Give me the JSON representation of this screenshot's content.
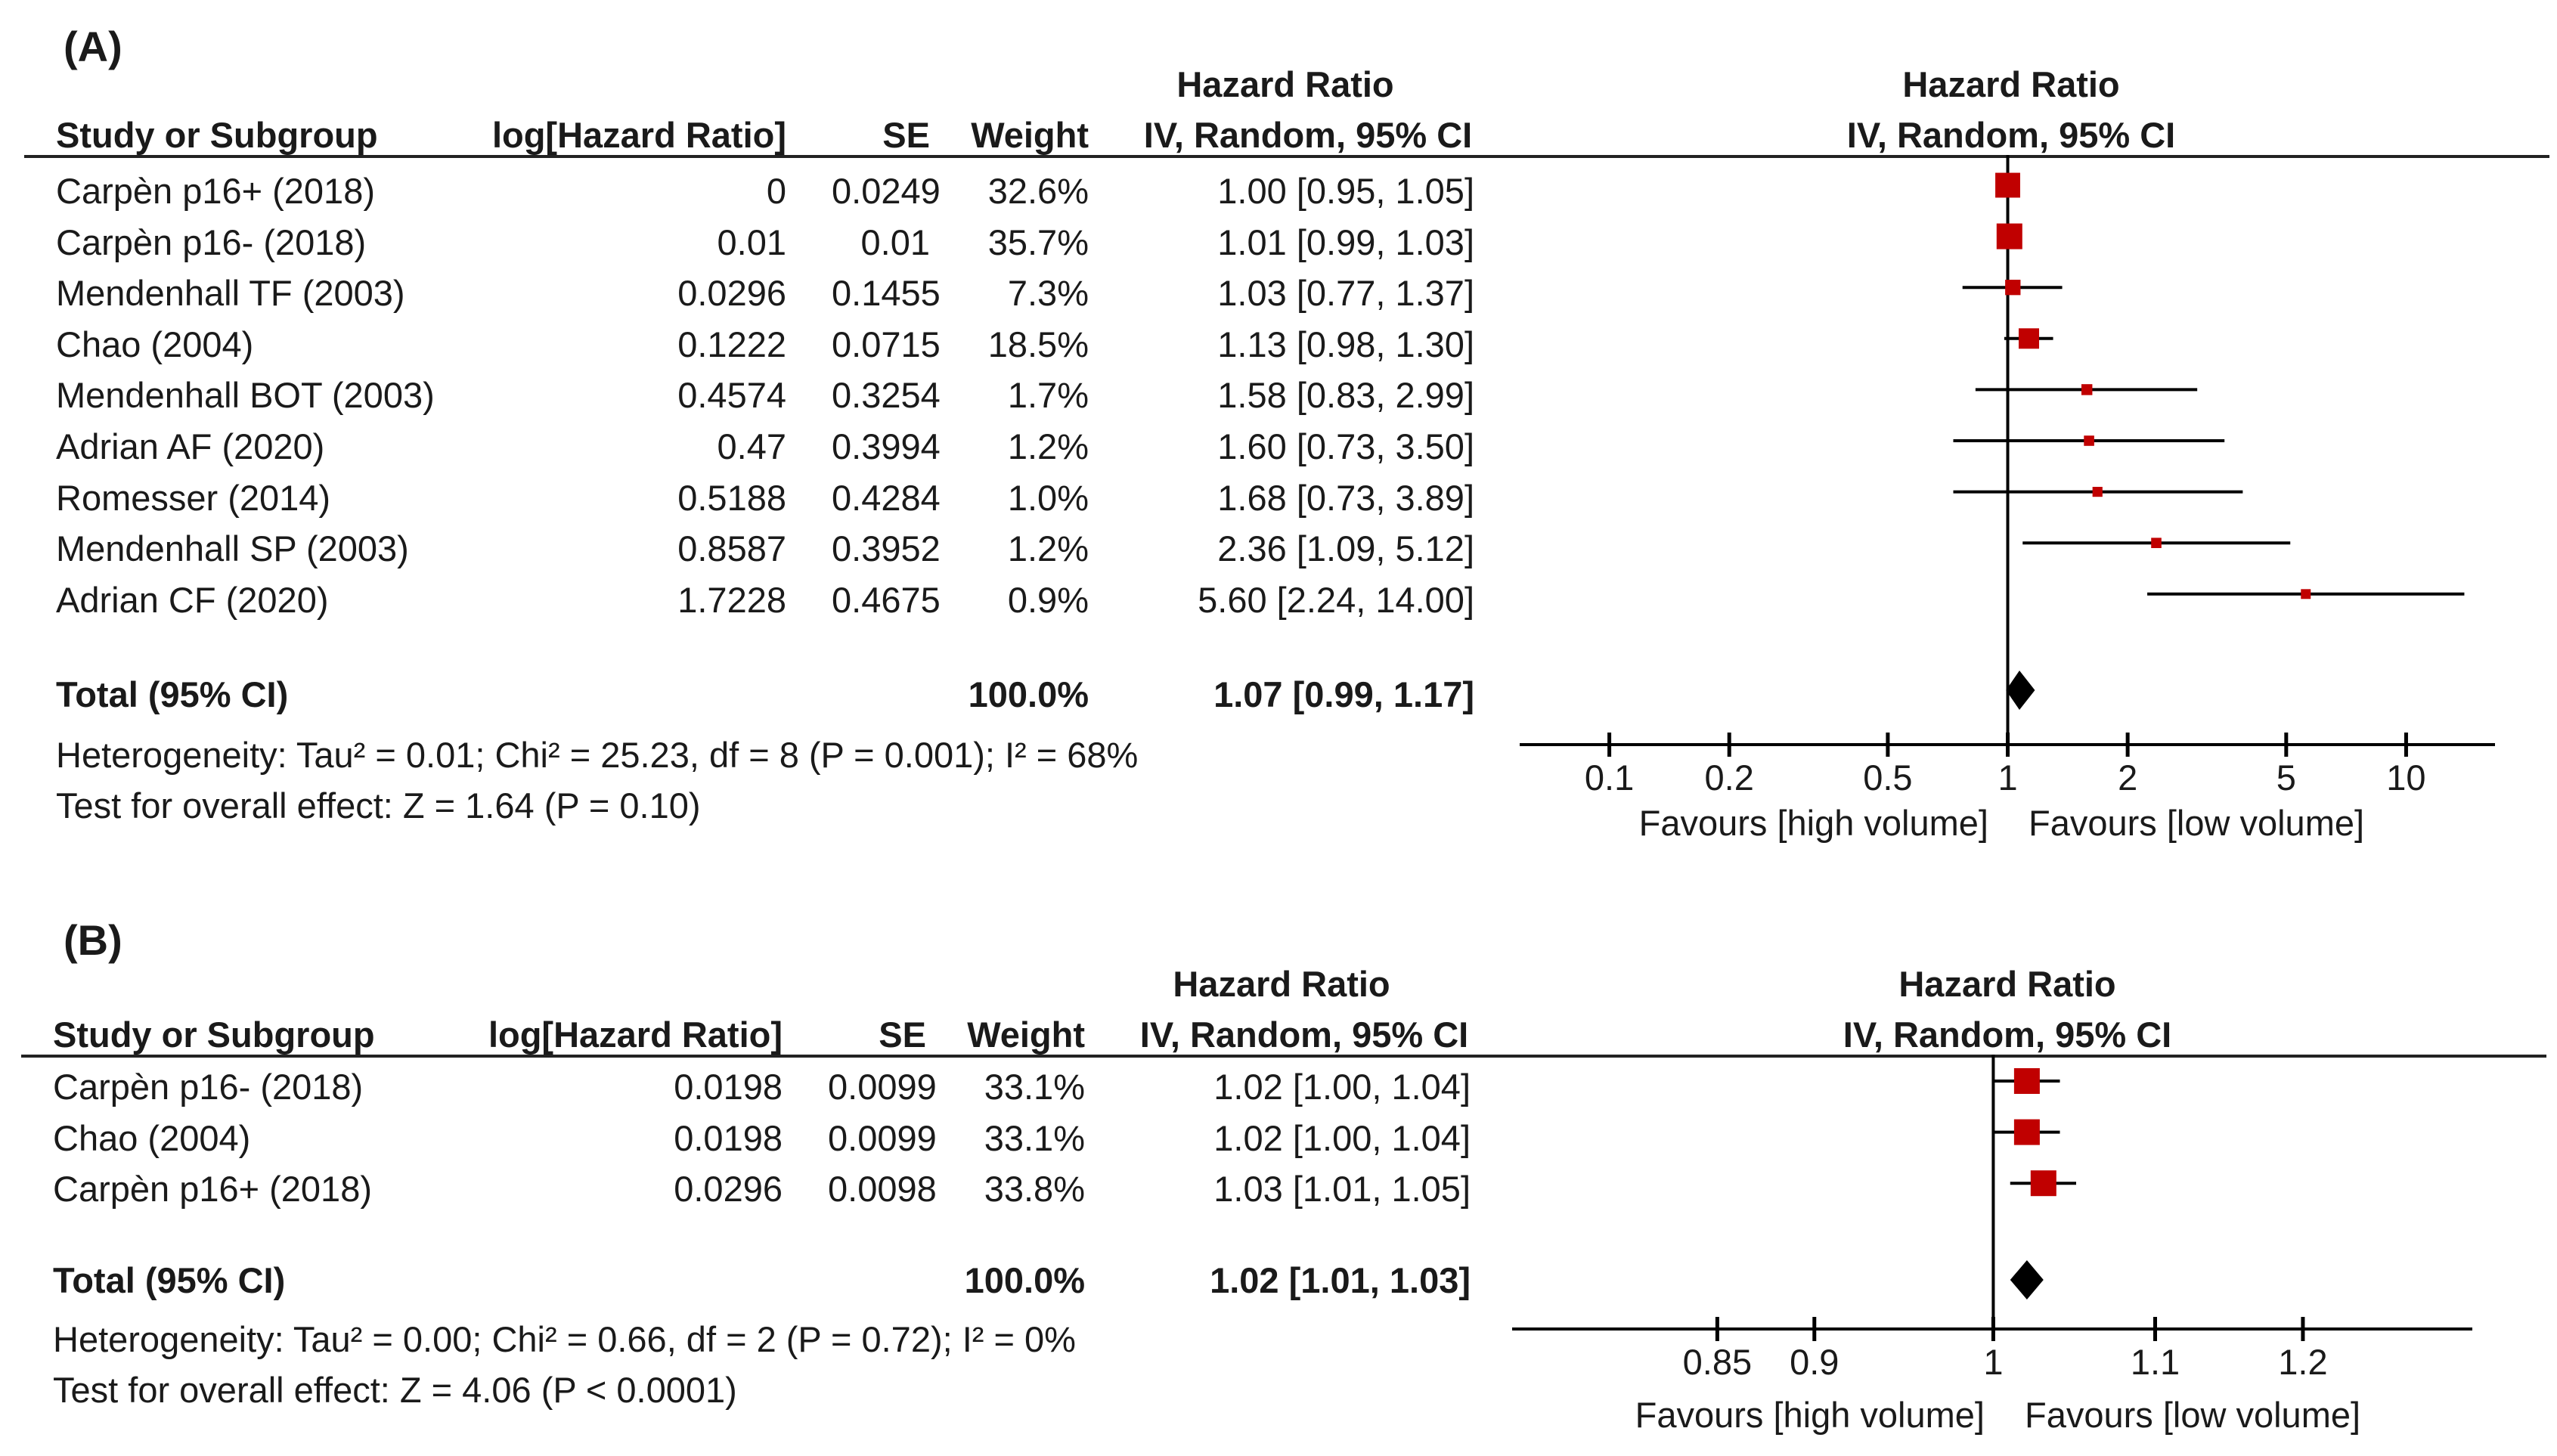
{
  "chart_data": [
    {
      "type": "forest",
      "panel_label": "(A)",
      "headers": {
        "study": "Study or Subgroup",
        "log_hr": "log[Hazard Ratio]",
        "se": "SE",
        "weight": "Weight",
        "hr_title": "Hazard Ratio",
        "hr_method": "IV, Random, 95% CI",
        "plot_title": "Hazard Ratio",
        "plot_method": "IV, Random, 95% CI"
      },
      "studies": [
        {
          "name": "Carpèn p16+ (2018)",
          "log_hr": "0",
          "se": "0.0249",
          "weight": "32.6%",
          "ci_text": "1.00 [0.95, 1.05]",
          "hr": 1.0,
          "lo": 0.95,
          "hi": 1.05,
          "w": 32.6
        },
        {
          "name": "Carpèn p16- (2018)",
          "log_hr": "0.01",
          "se": "0.01",
          "weight": "35.7%",
          "ci_text": "1.01 [0.99, 1.03]",
          "hr": 1.01,
          "lo": 0.99,
          "hi": 1.03,
          "w": 35.7
        },
        {
          "name": "Mendenhall TF (2003)",
          "log_hr": "0.0296",
          "se": "0.1455",
          "weight": "7.3%",
          "ci_text": "1.03 [0.77, 1.37]",
          "hr": 1.03,
          "lo": 0.77,
          "hi": 1.37,
          "w": 7.3
        },
        {
          "name": "Chao (2004)",
          "log_hr": "0.1222",
          "se": "0.0715",
          "weight": "18.5%",
          "ci_text": "1.13 [0.98, 1.30]",
          "hr": 1.13,
          "lo": 0.98,
          "hi": 1.3,
          "w": 18.5
        },
        {
          "name": "Mendenhall BOT (2003)",
          "log_hr": "0.4574",
          "se": "0.3254",
          "weight": "1.7%",
          "ci_text": "1.58 [0.83, 2.99]",
          "hr": 1.58,
          "lo": 0.83,
          "hi": 2.99,
          "w": 1.7
        },
        {
          "name": "Adrian AF (2020)",
          "log_hr": "0.47",
          "se": "0.3994",
          "weight": "1.2%",
          "ci_text": "1.60 [0.73, 3.50]",
          "hr": 1.6,
          "lo": 0.73,
          "hi": 3.5,
          "w": 1.2
        },
        {
          "name": "Romesser (2014)",
          "log_hr": "0.5188",
          "se": "0.4284",
          "weight": "1.0%",
          "ci_text": "1.68 [0.73, 3.89]",
          "hr": 1.68,
          "lo": 0.73,
          "hi": 3.89,
          "w": 1.0
        },
        {
          "name": "Mendenhall SP (2003)",
          "log_hr": "0.8587",
          "se": "0.3952",
          "weight": "1.2%",
          "ci_text": "2.36 [1.09, 5.12]",
          "hr": 2.36,
          "lo": 1.09,
          "hi": 5.12,
          "w": 1.2
        },
        {
          "name": "Adrian CF (2020)",
          "log_hr": "1.7228",
          "se": "0.4675",
          "weight": "0.9%",
          "ci_text": "5.60 [2.24, 14.00]",
          "hr": 5.6,
          "lo": 2.24,
          "hi": 14.0,
          "w": 0.9
        }
      ],
      "total": {
        "label": "Total (95% CI)",
        "weight": "100.0%",
        "ci_text": "1.07 [0.99, 1.17]",
        "hr": 1.07,
        "lo": 0.99,
        "hi": 1.17
      },
      "heterogeneity": "Heterogeneity: Tau² = 0.01; Chi² = 25.23, df = 8 (P = 0.001); I² = 68%",
      "overall_effect": "Test for overall effect: Z = 1.64 (P = 0.10)",
      "axis": {
        "scale": "log",
        "range": [
          0.065,
          16
        ],
        "ticks": [
          0.1,
          0.2,
          0.5,
          1,
          2,
          5,
          10
        ],
        "tick_labels": [
          "0.1",
          "0.2",
          "0.5",
          "1",
          "2",
          "5",
          "10"
        ],
        "favours_left": "Favours [high volume]",
        "favours_right": "Favours [low volume]"
      },
      "colors": {
        "square": "#c00000",
        "diamond": "#000000",
        "line": "#000000"
      }
    },
    {
      "type": "forest",
      "panel_label": "(B)",
      "headers": {
        "study": "Study or Subgroup",
        "log_hr": "log[Hazard Ratio]",
        "se": "SE",
        "weight": "Weight",
        "hr_title": "Hazard Ratio",
        "hr_method": "IV, Random, 95% CI",
        "plot_title": "Hazard Ratio",
        "plot_method": "IV, Random, 95% CI"
      },
      "studies": [
        {
          "name": "Carpèn p16- (2018)",
          "log_hr": "0.0198",
          "se": "0.0099",
          "weight": "33.1%",
          "ci_text": "1.02 [1.00, 1.04]",
          "hr": 1.02,
          "lo": 1.0,
          "hi": 1.04,
          "w": 33.1
        },
        {
          "name": "Chao (2004)",
          "log_hr": "0.0198",
          "se": "0.0099",
          "weight": "33.1%",
          "ci_text": "1.02 [1.00, 1.04]",
          "hr": 1.02,
          "lo": 1.0,
          "hi": 1.04,
          "w": 33.1
        },
        {
          "name": "Carpèn p16+ (2018)",
          "log_hr": "0.0296",
          "se": "0.0098",
          "weight": "33.8%",
          "ci_text": "1.03 [1.01, 1.05]",
          "hr": 1.03,
          "lo": 1.01,
          "hi": 1.05,
          "w": 33.8
        }
      ],
      "total": {
        "label": "Total (95% CI)",
        "weight": "100.0%",
        "ci_text": "1.02 [1.01, 1.03]",
        "hr": 1.02,
        "lo": 1.01,
        "hi": 1.03
      },
      "heterogeneity": "Heterogeneity: Tau² = 0.00; Chi² = 0.66, df = 2 (P = 0.72); I² = 0%",
      "overall_effect": "Test for overall effect: Z = 4.06 (P < 0.0001)",
      "axis": {
        "scale": "log",
        "range": [
          0.76,
          1.32
        ],
        "ticks": [
          0.85,
          0.9,
          1,
          1.1,
          1.2
        ],
        "tick_labels": [
          "0.85",
          "0.9",
          "1",
          "1.1",
          "1.2"
        ],
        "favours_left": "Favours [high volume]",
        "favours_right": "Favours [low volume]"
      },
      "colors": {
        "square": "#c00000",
        "diamond": "#000000",
        "line": "#000000"
      }
    }
  ]
}
